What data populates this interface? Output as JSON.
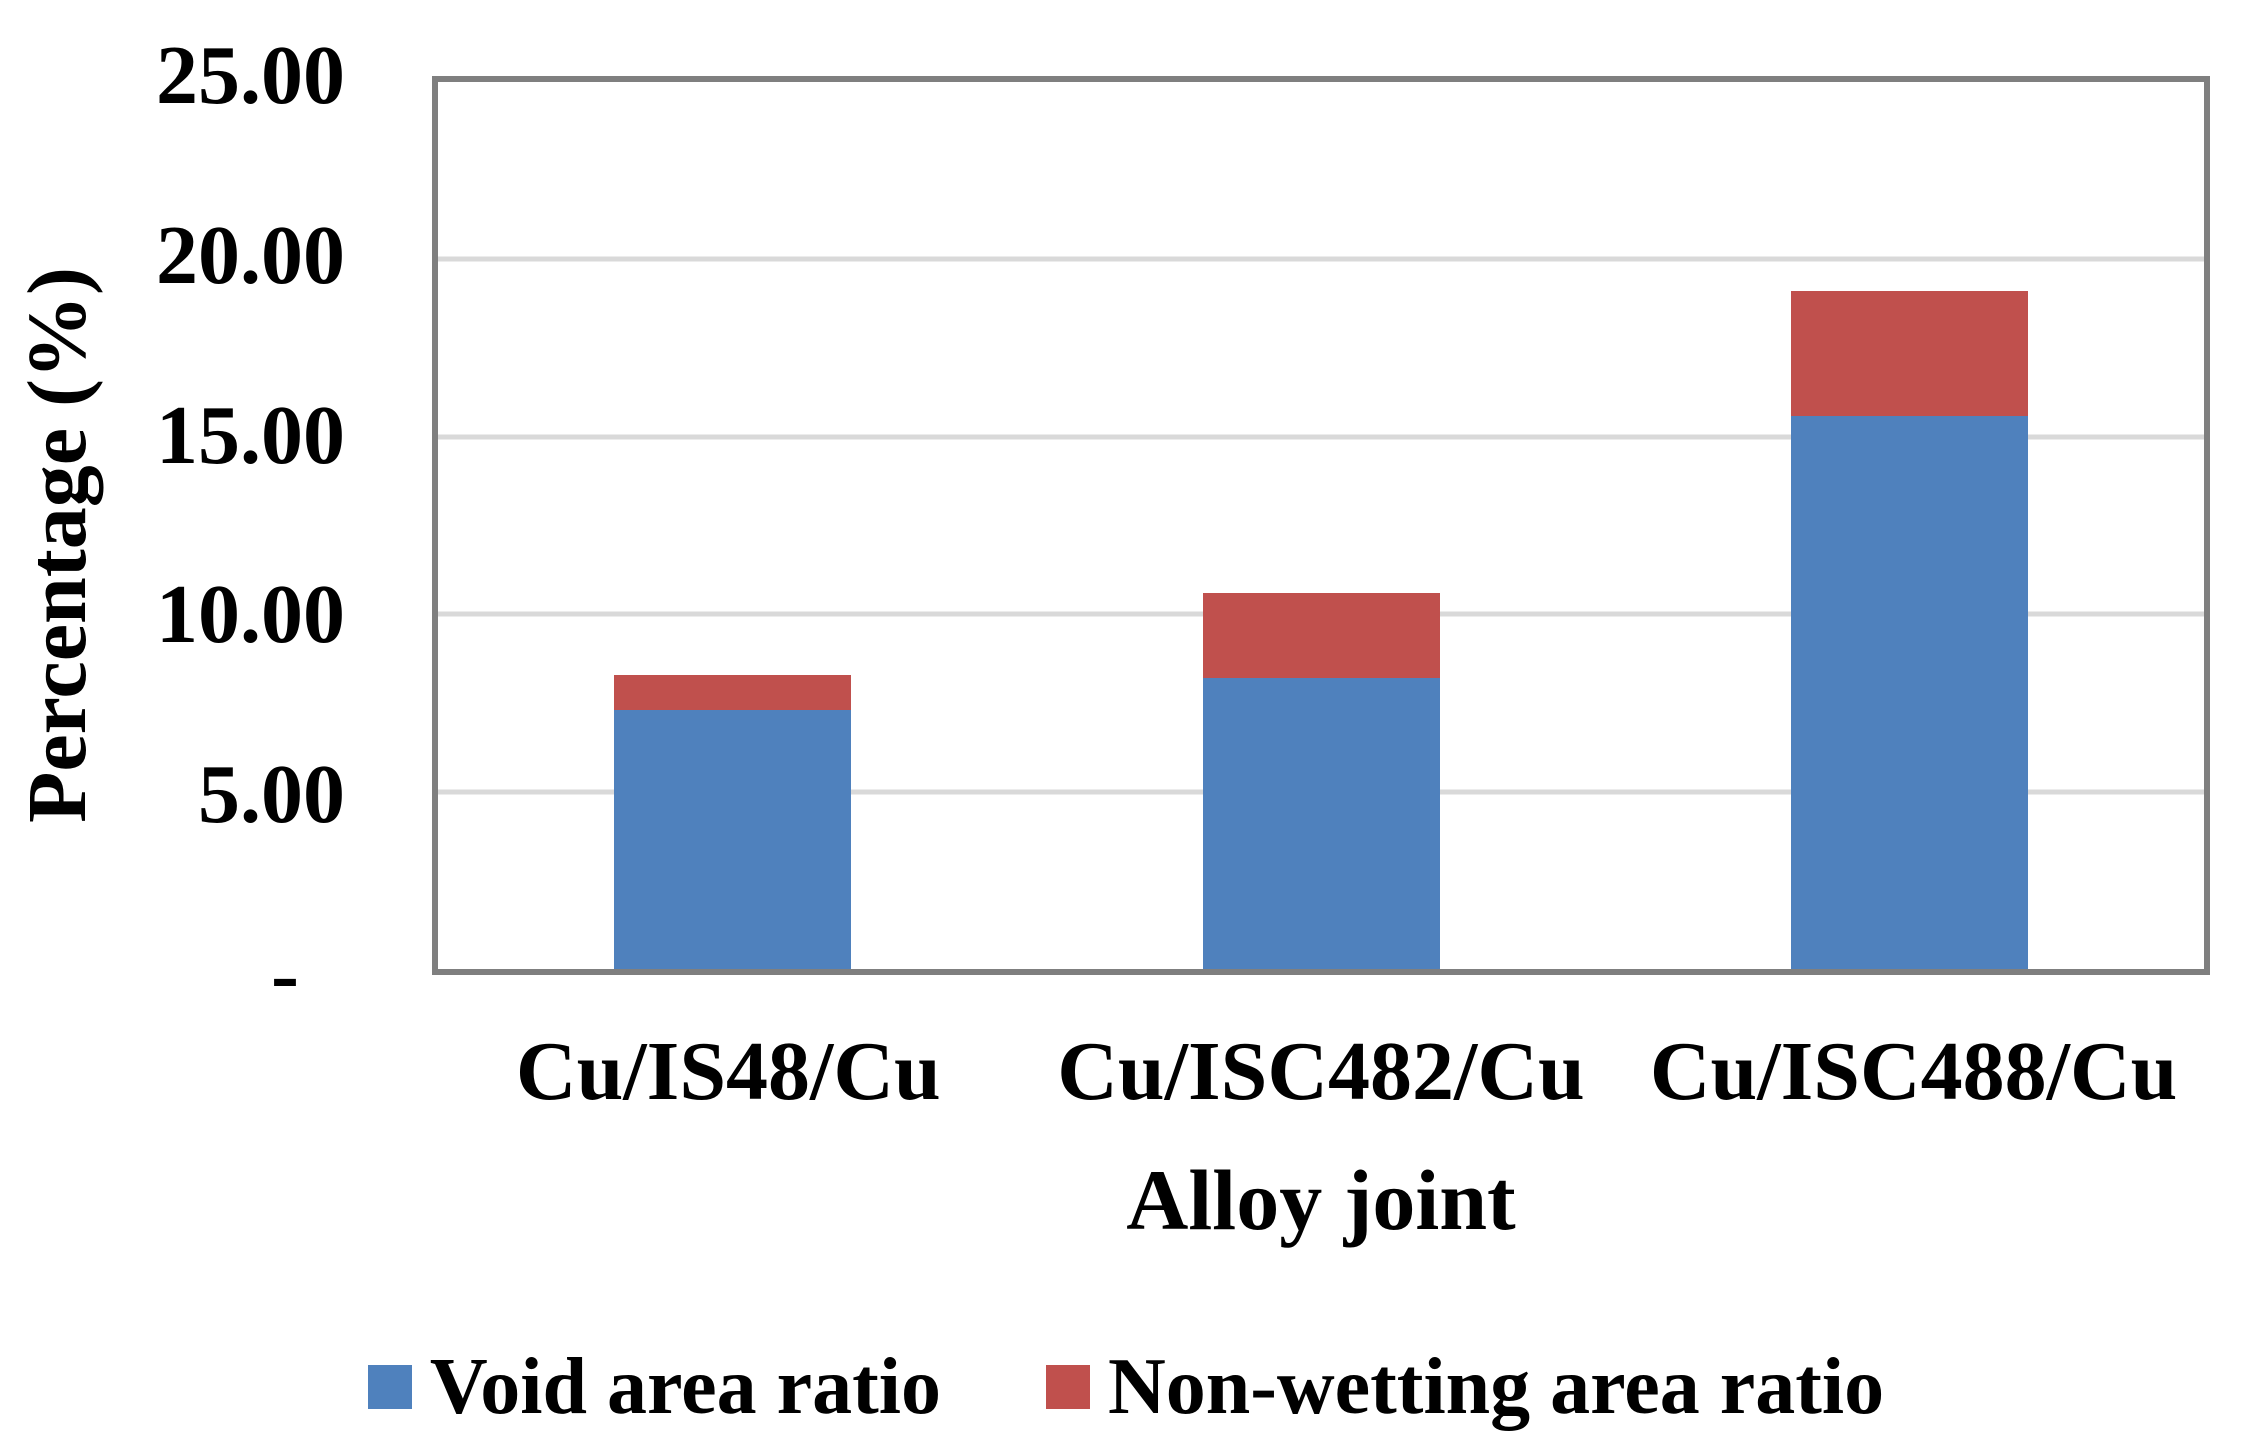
{
  "chart_data": {
    "type": "bar",
    "stacked": true,
    "title": "",
    "categories": [
      "Cu/IS48/Cu",
      "Cu/ISC482/Cu",
      "Cu/ISC488/Cu"
    ],
    "series": [
      {
        "name": "Void area ratio",
        "color": "#4F81BD",
        "values": [
          7.3,
          8.2,
          15.6
        ]
      },
      {
        "name": "Non-wetting area ratio",
        "color": "#C0504D",
        "values": [
          1.0,
          2.4,
          3.5
        ]
      }
    ],
    "xlabel": "Alloy joint",
    "ylabel": "Percentage (%)",
    "ylim": [
      0,
      25
    ],
    "yticks": [
      {
        "value": 25,
        "label": "25.00"
      },
      {
        "value": 20,
        "label": "20.00"
      },
      {
        "value": 15,
        "label": "15.00"
      },
      {
        "value": 10,
        "label": "10.00"
      },
      {
        "value": 5,
        "label": "5.00"
      },
      {
        "value": 0,
        "label": "-"
      }
    ],
    "grid": true,
    "legend_position": "bottom",
    "colors": {
      "grid": "#D9D9D9",
      "frame": "#7F7F7F",
      "text": "#000000",
      "background": "#FFFFFF"
    }
  }
}
